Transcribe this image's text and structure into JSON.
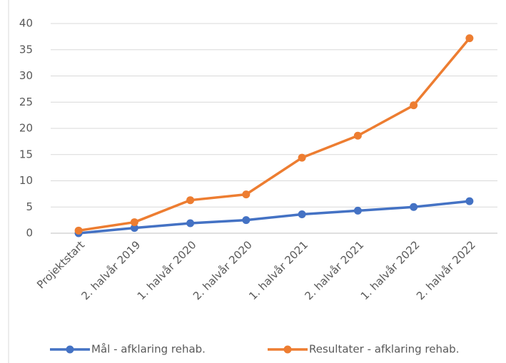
{
  "chart_data": {
    "type": "line",
    "categories": [
      "Projektstart",
      "2. halvår 2019",
      "1. halvår 2020",
      "2. halvår 2020",
      "1. halvår 2021",
      "2. halvår 2021",
      "1. halvår 2022",
      "2. halvår 2022"
    ],
    "series": [
      {
        "name": "Mål - afklaring rehab.",
        "color": "#4472c4",
        "values": [
          0,
          1,
          1.9,
          2.5,
          3.6,
          4.3,
          5,
          6.1
        ]
      },
      {
        "name": "Resultater - afklaring rehab.",
        "color": "#ed7d31",
        "values": [
          0.5,
          2.1,
          6.3,
          7.4,
          14.4,
          18.6,
          24.4,
          37.2
        ]
      }
    ],
    "ylim": [
      0,
      40
    ],
    "yticks": [
      0,
      5,
      10,
      15,
      20,
      25,
      30,
      35,
      40
    ],
    "grid": true,
    "legend": "bottom"
  }
}
